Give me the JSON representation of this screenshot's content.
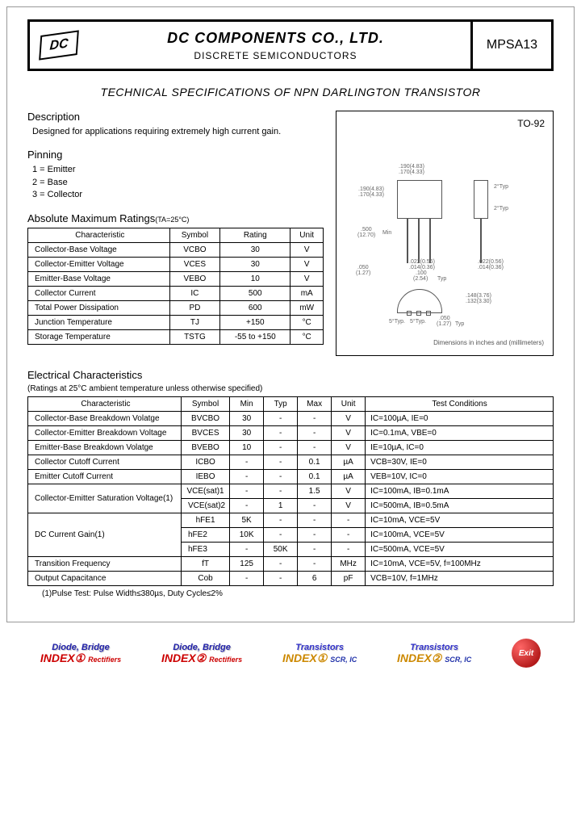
{
  "header": {
    "logo_text": "DC",
    "company": "DC COMPONENTS CO., LTD.",
    "subtitle": "DISCRETE SEMICONDUCTORS",
    "part_number": "MPSA13"
  },
  "spec_title": "TECHNICAL SPECIFICATIONS OF NPN DARLINGTON TRANSISTOR",
  "description": {
    "heading": "Description",
    "text": "Designed for applications requiring extremely high current gain."
  },
  "pinning": {
    "heading": "Pinning",
    "pins": [
      "1 = Emitter",
      "2 = Base",
      "3 = Collector"
    ]
  },
  "package": {
    "label": "TO-92",
    "note": "Dimensions in inches and (millimeters)",
    "dims": {
      "d1": ".190(4.83)",
      "d2": ".170(4.33)",
      "d3": ".190(4.83)",
      "d4": ".170(4.33)",
      "d5": ".500",
      "d5b": "(12.70)",
      "d6": ".050",
      "d6b": "(1.27)",
      "d7": ".022(0.56)",
      "d7b": ".014(0.36)",
      "d8": ".100",
      "d8b": "(2.54)",
      "d9": ".022(0.56)",
      "d9b": ".014(0.36)",
      "d10": ".148(3.76)",
      "d10b": ".132(3.30)",
      "d11": ".050",
      "d11b": "(1.27)",
      "typ": "Typ",
      "min": "Min",
      "t2": "2°Typ",
      "t5": "5°Typ.",
      "t5b": "5°Typ."
    }
  },
  "ratings": {
    "heading": "Absolute Maximum Ratings",
    "cond": "(TA=25°C)",
    "columns": [
      "Characteristic",
      "Symbol",
      "Rating",
      "Unit"
    ],
    "rows": [
      [
        "Collector-Base Voltage",
        "VCBO",
        "30",
        "V"
      ],
      [
        "Collector-Emitter Voltage",
        "VCES",
        "30",
        "V"
      ],
      [
        "Emitter-Base Voltage",
        "VEBO",
        "10",
        "V"
      ],
      [
        "Collector Current",
        "IC",
        "500",
        "mA"
      ],
      [
        "Total Power Dissipation",
        "PD",
        "600",
        "mW"
      ],
      [
        "Junction Temperature",
        "TJ",
        "+150",
        "°C"
      ],
      [
        "Storage Temperature",
        "TSTG",
        "-55 to +150",
        "°C"
      ]
    ]
  },
  "electrical": {
    "heading": "Electrical Characteristics",
    "cond": "(Ratings at 25°C ambient temperature unless otherwise specified)",
    "columns": [
      "Characteristic",
      "Symbol",
      "Min",
      "Typ",
      "Max",
      "Unit",
      "Test Conditions"
    ],
    "rows": [
      [
        "Collector-Base Breakdown Volatge",
        "BVCBO",
        "30",
        "-",
        "-",
        "V",
        "IC=100µA, IE=0"
      ],
      [
        "Collector-Emitter Breakdown Voltage",
        "BVCES",
        "30",
        "-",
        "-",
        "V",
        "IC=0.1mA, VBE=0"
      ],
      [
        "Emitter-Base Breakdown Volatge",
        "BVEBO",
        "10",
        "-",
        "-",
        "V",
        "IE=10µA, IC=0"
      ],
      [
        "Collector Cutoff Current",
        "ICBO",
        "-",
        "-",
        "0.1",
        "µA",
        "VCB=30V, IE=0"
      ],
      [
        "Emitter Cutoff Current",
        "IEBO",
        "-",
        "-",
        "0.1",
        "µA",
        "VEB=10V, IC=0"
      ]
    ],
    "sat": {
      "label": "Collector-Emitter Saturation Voltage(1)",
      "rows": [
        [
          "VCE(sat)1",
          "-",
          "-",
          "1.5",
          "V",
          "IC=100mA, IB=0.1mA"
        ],
        [
          "VCE(sat)2",
          "-",
          "1",
          "-",
          "V",
          "IC=500mA, IB=0.5mA"
        ]
      ]
    },
    "gain": {
      "label": "DC Current Gain(1)",
      "rows": [
        [
          "hFE1",
          "5K",
          "-",
          "-",
          "-",
          "IC=10mA, VCE=5V"
        ],
        [
          "hFE2",
          "10K",
          "-",
          "-",
          "-",
          "IC=100mA, VCE=5V"
        ],
        [
          "hFE3",
          "-",
          "50K",
          "-",
          "-",
          "IC=500mA, VCE=5V"
        ]
      ]
    },
    "tail_rows": [
      [
        "Transition Frequency",
        "fT",
        "125",
        "-",
        "-",
        "MHz",
        "IC=10mA, VCE=5V, f=100MHz"
      ],
      [
        "Output Capacitance",
        "Cob",
        "-",
        "-",
        "6",
        "pF",
        "VCB=10V, f=1MHz"
      ]
    ],
    "footnote": "(1)Pulse Test: Pulse Width≤380µs, Duty Cycle≤2%"
  },
  "footer": {
    "btn1": {
      "l1": "Diode, Bridge",
      "l2": "INDEX①",
      "l3": "Rectifiers"
    },
    "btn2": {
      "l1": "Diode, Bridge",
      "l2": "INDEX②",
      "l3": "Rectifiers"
    },
    "btn3": {
      "l1": "Transistors",
      "l2": "INDEX①",
      "l3": "SCR, IC"
    },
    "btn4": {
      "l1": "Transistors",
      "l2": "INDEX②",
      "l3": "SCR, IC"
    },
    "exit": "Exit"
  }
}
